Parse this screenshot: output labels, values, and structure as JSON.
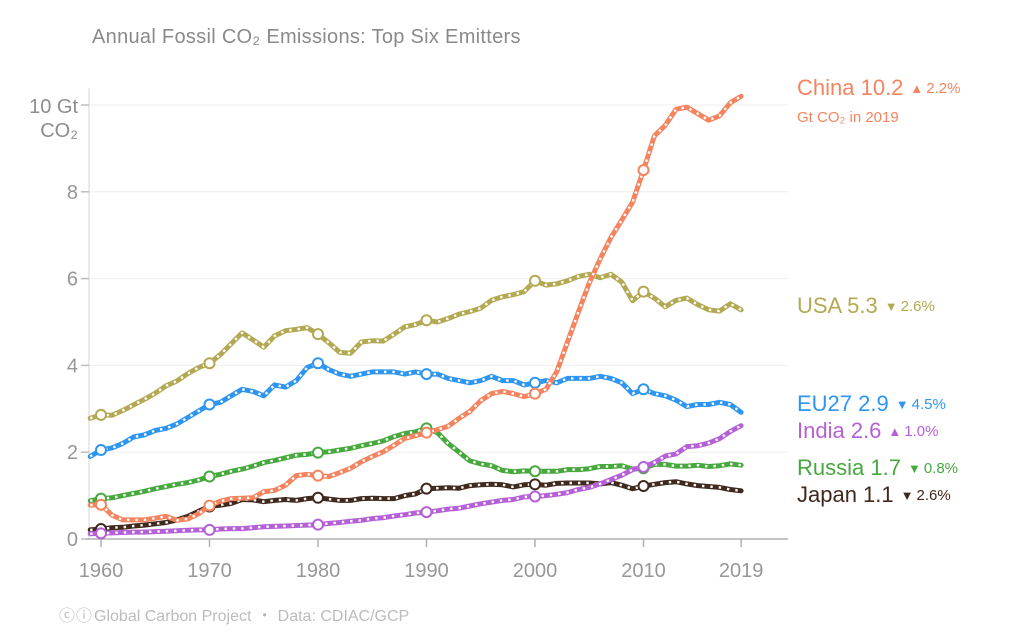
{
  "footer": {
    "icons": "ⓒⓘ",
    "credit": "Global Carbon Project",
    "separator": "•",
    "source": "Data: CDIAC/GCP"
  },
  "legend": {
    "items": [
      {
        "id": "china",
        "label": "China 10.2",
        "arrow": "▲",
        "direction": "up",
        "pct": "2.2%",
        "color": "#f4845f",
        "sub": "Gt CO₂ in 2019"
      },
      {
        "id": "usa",
        "label": "USA 5.3",
        "arrow": "▼",
        "direction": "down",
        "pct": "2.6%",
        "color": "#b3a953"
      },
      {
        "id": "eu27",
        "label": "EU27 2.9",
        "arrow": "▼",
        "direction": "down",
        "pct": "4.5%",
        "color": "#2e96f0"
      },
      {
        "id": "india",
        "label": "India 2.6",
        "arrow": "▲",
        "direction": "up",
        "pct": "1.0%",
        "color": "#b660d8"
      },
      {
        "id": "russia",
        "label": "Russia 1.7",
        "arrow": "▼",
        "direction": "down",
        "pct": "0.8%",
        "color": "#47a83e"
      },
      {
        "id": "japan",
        "label": "Japan 1.1",
        "arrow": "▼",
        "direction": "down",
        "pct": "2.6%",
        "color": "#40291d"
      }
    ]
  },
  "chart_data": {
    "type": "line",
    "title": "Annual Fossil CO₂ Emissions: Top Six Emitters",
    "xlabel": "",
    "ylabel": "Gt CO₂",
    "y_top_label_lines": [
      "10 Gt",
      "CO₂"
    ],
    "xlim": [
      1959,
      2019
    ],
    "ylim": [
      0,
      10.6
    ],
    "grid": "horizontal",
    "legend_position": "right",
    "x_ticks": [
      1960,
      1970,
      1980,
      1990,
      2000,
      2010,
      2019
    ],
    "y_ticks": [
      0,
      2,
      4,
      6,
      8,
      10
    ],
    "marker_years": [
      1960,
      1970,
      1980,
      1990,
      2000,
      2010
    ],
    "years": [
      1959,
      1960,
      1961,
      1962,
      1963,
      1964,
      1965,
      1966,
      1967,
      1968,
      1969,
      1970,
      1971,
      1972,
      1973,
      1974,
      1975,
      1976,
      1977,
      1978,
      1979,
      1980,
      1981,
      1982,
      1983,
      1984,
      1985,
      1986,
      1987,
      1988,
      1989,
      1990,
      1991,
      1992,
      1993,
      1994,
      1995,
      1996,
      1997,
      1998,
      1999,
      2000,
      2001,
      2002,
      2003,
      2004,
      2005,
      2006,
      2007,
      2008,
      2009,
      2010,
      2011,
      2012,
      2013,
      2014,
      2015,
      2016,
      2017,
      2018,
      2019
    ],
    "series": [
      {
        "name": "Japan",
        "color": "#40291d",
        "final_value": 1.1,
        "values": [
          0.21,
          0.23,
          0.26,
          0.27,
          0.3,
          0.32,
          0.35,
          0.38,
          0.44,
          0.52,
          0.64,
          0.75,
          0.78,
          0.82,
          0.91,
          0.9,
          0.86,
          0.89,
          0.91,
          0.89,
          0.93,
          0.95,
          0.92,
          0.89,
          0.89,
          0.93,
          0.94,
          0.93,
          0.93,
          1.0,
          1.04,
          1.16,
          1.17,
          1.18,
          1.17,
          1.23,
          1.25,
          1.26,
          1.25,
          1.2,
          1.25,
          1.26,
          1.24,
          1.28,
          1.29,
          1.29,
          1.29,
          1.27,
          1.3,
          1.24,
          1.16,
          1.22,
          1.26,
          1.3,
          1.32,
          1.27,
          1.23,
          1.21,
          1.19,
          1.14,
          1.11
        ]
      },
      {
        "name": "Russia",
        "color": "#47a83e",
        "final_value": 1.7,
        "values": [
          0.88,
          0.93,
          0.95,
          1.0,
          1.05,
          1.1,
          1.16,
          1.21,
          1.26,
          1.3,
          1.36,
          1.44,
          1.49,
          1.56,
          1.61,
          1.68,
          1.76,
          1.81,
          1.87,
          1.93,
          1.95,
          1.99,
          2.01,
          2.05,
          2.09,
          2.15,
          2.2,
          2.26,
          2.36,
          2.43,
          2.47,
          2.55,
          2.45,
          2.2,
          2.0,
          1.8,
          1.73,
          1.69,
          1.58,
          1.55,
          1.57,
          1.56,
          1.56,
          1.56,
          1.6,
          1.6,
          1.62,
          1.67,
          1.67,
          1.69,
          1.61,
          1.63,
          1.72,
          1.72,
          1.68,
          1.68,
          1.7,
          1.67,
          1.69,
          1.73,
          1.7
        ]
      },
      {
        "name": "India",
        "color": "#b660d8",
        "final_value": 2.6,
        "values": [
          0.12,
          0.13,
          0.14,
          0.15,
          0.16,
          0.16,
          0.17,
          0.18,
          0.19,
          0.2,
          0.21,
          0.21,
          0.23,
          0.24,
          0.24,
          0.26,
          0.28,
          0.29,
          0.3,
          0.31,
          0.32,
          0.33,
          0.36,
          0.38,
          0.41,
          0.43,
          0.47,
          0.49,
          0.53,
          0.56,
          0.6,
          0.62,
          0.65,
          0.69,
          0.71,
          0.76,
          0.81,
          0.85,
          0.89,
          0.91,
          0.97,
          0.98,
          1.0,
          1.03,
          1.07,
          1.14,
          1.19,
          1.27,
          1.37,
          1.47,
          1.6,
          1.66,
          1.76,
          1.91,
          1.96,
          2.13,
          2.15,
          2.21,
          2.31,
          2.48,
          2.61
        ]
      },
      {
        "name": "EU27",
        "color": "#2e96f0",
        "final_value": 2.9,
        "values": [
          1.9,
          2.05,
          2.1,
          2.2,
          2.35,
          2.4,
          2.5,
          2.55,
          2.65,
          2.8,
          2.95,
          3.1,
          3.15,
          3.3,
          3.45,
          3.4,
          3.3,
          3.55,
          3.5,
          3.65,
          3.95,
          4.05,
          3.9,
          3.8,
          3.75,
          3.8,
          3.85,
          3.85,
          3.85,
          3.8,
          3.85,
          3.8,
          3.8,
          3.7,
          3.65,
          3.6,
          3.65,
          3.75,
          3.65,
          3.65,
          3.55,
          3.6,
          3.65,
          3.6,
          3.7,
          3.7,
          3.7,
          3.75,
          3.7,
          3.6,
          3.35,
          3.45,
          3.35,
          3.3,
          3.2,
          3.05,
          3.1,
          3.1,
          3.15,
          3.1,
          2.92
        ]
      },
      {
        "name": "USA",
        "color": "#b3a953",
        "final_value": 5.3,
        "values": [
          2.78,
          2.86,
          2.85,
          2.96,
          3.09,
          3.22,
          3.36,
          3.53,
          3.64,
          3.81,
          3.95,
          4.05,
          4.25,
          4.5,
          4.75,
          4.59,
          4.42,
          4.68,
          4.8,
          4.83,
          4.87,
          4.72,
          4.52,
          4.3,
          4.28,
          4.54,
          4.57,
          4.56,
          4.72,
          4.89,
          4.94,
          5.04,
          5.0,
          5.08,
          5.18,
          5.24,
          5.32,
          5.5,
          5.58,
          5.63,
          5.7,
          5.95,
          5.85,
          5.88,
          5.95,
          6.05,
          6.1,
          6.02,
          6.1,
          5.92,
          5.49,
          5.7,
          5.55,
          5.35,
          5.5,
          5.55,
          5.4,
          5.28,
          5.25,
          5.42,
          5.28
        ]
      },
      {
        "name": "China",
        "color": "#f4845f",
        "final_value": 10.2,
        "values": [
          0.78,
          0.79,
          0.55,
          0.44,
          0.44,
          0.44,
          0.48,
          0.52,
          0.43,
          0.46,
          0.58,
          0.77,
          0.87,
          0.93,
          0.94,
          0.95,
          1.09,
          1.12,
          1.24,
          1.46,
          1.49,
          1.46,
          1.44,
          1.53,
          1.63,
          1.78,
          1.9,
          2.01,
          2.16,
          2.32,
          2.38,
          2.45,
          2.52,
          2.6,
          2.78,
          2.94,
          3.19,
          3.35,
          3.4,
          3.35,
          3.28,
          3.35,
          3.45,
          3.85,
          4.54,
          5.23,
          5.9,
          6.45,
          6.95,
          7.35,
          7.76,
          8.5,
          9.29,
          9.53,
          9.9,
          9.95,
          9.8,
          9.65,
          9.75,
          10.05,
          10.2
        ]
      }
    ]
  }
}
